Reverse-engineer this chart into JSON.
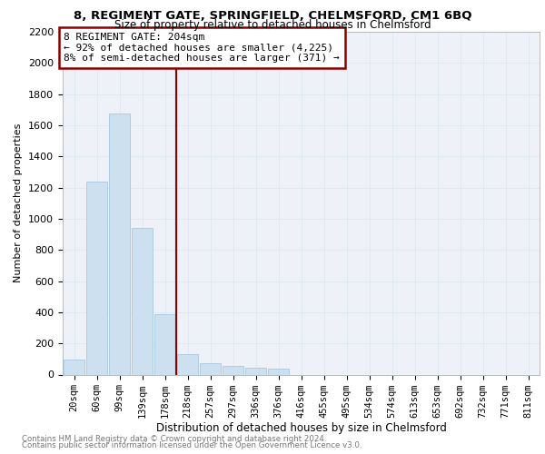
{
  "title1": "8, REGIMENT GATE, SPRINGFIELD, CHELMSFORD, CM1 6BQ",
  "title2": "Size of property relative to detached houses in Chelmsford",
  "xlabel": "Distribution of detached houses by size in Chelmsford",
  "ylabel": "Number of detached properties",
  "footnote1": "Contains HM Land Registry data © Crown copyright and database right 2024.",
  "footnote2": "Contains public sector information licensed under the Open Government Licence v3.0.",
  "annotation_line1": "8 REGIMENT GATE: 204sqm",
  "annotation_line2": "← 92% of detached houses are smaller (4,225)",
  "annotation_line3": "8% of semi-detached houses are larger (371) →",
  "bar_labels": [
    "20sqm",
    "60sqm",
    "99sqm",
    "139sqm",
    "178sqm",
    "218sqm",
    "257sqm",
    "297sqm",
    "336sqm",
    "376sqm",
    "416sqm",
    "455sqm",
    "495sqm",
    "534sqm",
    "574sqm",
    "613sqm",
    "653sqm",
    "692sqm",
    "732sqm",
    "771sqm",
    "811sqm"
  ],
  "bar_values": [
    95,
    1240,
    1675,
    940,
    390,
    130,
    75,
    55,
    45,
    35,
    0,
    0,
    0,
    0,
    0,
    0,
    0,
    0,
    0,
    0,
    0
  ],
  "bar_color": "#cce0f0",
  "bar_edge_color": "#a8c8e0",
  "vline_color": "#8b0000",
  "vline_x": 4.5,
  "annotation_box_color": "#8b0000",
  "ylim": [
    0,
    2200
  ],
  "yticks": [
    0,
    200,
    400,
    600,
    800,
    1000,
    1200,
    1400,
    1600,
    1800,
    2000,
    2200
  ],
  "grid_color": "#dce8f0",
  "background_color": "#eef2f8",
  "title1_fontsize": 9.5,
  "title2_fontsize": 8.5,
  "xlabel_fontsize": 8.5,
  "ylabel_fontsize": 8.0,
  "annot_fontsize": 8.0,
  "tick_fontsize": 7.5,
  "ytick_fontsize": 8.0
}
